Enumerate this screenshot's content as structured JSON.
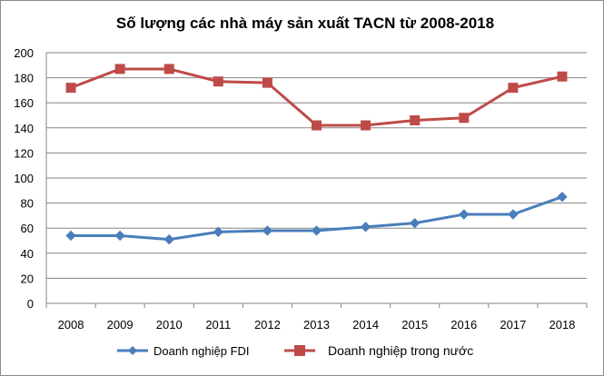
{
  "chart_data": {
    "type": "line",
    "title": "Số lượng các nhà máy sản xuất TACN từ 2008-2018",
    "xlabel": "",
    "ylabel": "",
    "categories": [
      "2008",
      "2009",
      "2010",
      "2011",
      "2012",
      "2013",
      "2014",
      "2015",
      "2016",
      "2017",
      "2018"
    ],
    "ylim": [
      0,
      200
    ],
    "yticks": [
      "0",
      "20",
      "40",
      "60",
      "80",
      "100",
      "120",
      "140",
      "160",
      "180",
      "200"
    ],
    "grid": true,
    "legend_position": "bottom",
    "series": [
      {
        "name": "Doanh nghiệp FDI",
        "color": "#4a7ebb",
        "marker": "diamond",
        "values": [
          54,
          54,
          51,
          57,
          58,
          58,
          61,
          64,
          71,
          71,
          85
        ]
      },
      {
        "name": "Doanh nghiệp trong nước",
        "color": "#be4b48",
        "marker": "square",
        "values": [
          172,
          187,
          187,
          177,
          176,
          142,
          142,
          146,
          148,
          172,
          181
        ]
      }
    ]
  }
}
